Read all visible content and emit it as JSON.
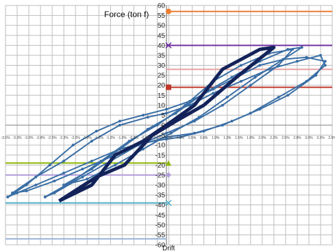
{
  "chart_data": {
    "type": "line",
    "title": "Force (ton f)",
    "xlabel": "Drift",
    "ylabel": "",
    "ylim": [
      -60,
      60
    ],
    "xlim": [
      -3.5,
      3.5
    ],
    "yticks": [
      60,
      55,
      50,
      45,
      40,
      35,
      30,
      25,
      20,
      15,
      10,
      5,
      0,
      -5,
      -10,
      -15,
      -20,
      -25,
      -30,
      -35,
      -40,
      -45,
      -50,
      -55,
      -60
    ],
    "xticks": [
      "-3.5%",
      "-3.3%",
      "-3.0%",
      "-2.8%",
      "-2.5%",
      "-2.3%",
      "-2.0%",
      "-1.8%",
      "-1.5%",
      "-1.3%",
      "-1.0%",
      "-0.8%",
      "-0.5%",
      "-0.3%",
      "0.0%",
      "0.3%",
      "0.5%",
      "0.8%",
      "1.0%",
      "1.3%",
      "1.5%",
      "1.8%",
      "2.0%",
      "2.3%",
      "2.5%",
      "2.8%",
      "3.0%",
      "3.3%",
      "3.5%"
    ],
    "grid": true,
    "hlines": [
      {
        "y": 57,
        "color": "#ED7D31",
        "marker": "circle",
        "side": "right"
      },
      {
        "y": 40,
        "color": "#7030A0",
        "marker": "x",
        "side": "right"
      },
      {
        "y": 28,
        "color": "#E6A0A0",
        "marker": "none",
        "side": "right"
      },
      {
        "y": 19,
        "color": "#C0392B",
        "marker": "square",
        "side": "right"
      },
      {
        "y": -19,
        "color": "#8DB600",
        "marker": "triangle",
        "side": "left"
      },
      {
        "y": -25,
        "color": "#B39DDB",
        "marker": "diamond",
        "side": "left"
      },
      {
        "y": -39,
        "color": "#4BACC6",
        "marker": "x",
        "side": "left"
      },
      {
        "y": -57,
        "color": "#95B3D7",
        "marker": "none",
        "side": "left"
      }
    ],
    "series": [
      {
        "color": "#3A6EA5",
        "width": 2,
        "markers": true,
        "x": [
          -3.4,
          -3.0,
          -2.5,
          -2.0,
          -1.5,
          -1.0,
          -0.5,
          0.0,
          0.5,
          1.0,
          1.5,
          2.0,
          2.5,
          3.0,
          3.4,
          3.2,
          2.6,
          2.0,
          1.4,
          0.8,
          0.3,
          0.0,
          -0.5,
          -1.0,
          -1.6,
          -2.2,
          -2.8,
          -3.2,
          -3.4
        ],
        "y": [
          -36,
          -30,
          -20,
          -10,
          -3,
          2,
          5,
          8,
          12,
          18,
          24,
          30,
          33,
          34,
          32,
          25,
          15,
          8,
          2,
          -3,
          -6,
          -7,
          -9,
          -12,
          -18,
          -24,
          -30,
          -34,
          -36
        ]
      },
      {
        "color": "#3A6EA5",
        "width": 2,
        "markers": true,
        "x": [
          -3.3,
          -2.8,
          -2.2,
          -1.6,
          -1.0,
          -0.4,
          0.0,
          0.5,
          1.0,
          1.6,
          2.2,
          2.8,
          3.3,
          3.4,
          3.0,
          2.4,
          1.8,
          1.2,
          0.6,
          0.0,
          -0.6,
          -1.2,
          -1.8,
          -2.4,
          -3.0,
          -3.3
        ],
        "y": [
          -34,
          -26,
          -18,
          -8,
          0,
          4,
          6,
          10,
          16,
          22,
          28,
          32,
          35,
          30,
          22,
          14,
          6,
          0,
          -4,
          -6,
          -10,
          -16,
          -22,
          -28,
          -33,
          -34
        ]
      },
      {
        "color": "#3A6EA5",
        "width": 2,
        "markers": true,
        "x": [
          -2.6,
          -2.0,
          -1.4,
          -0.8,
          -0.2,
          0.4,
          1.0,
          1.6,
          2.2,
          2.7,
          2.4,
          1.8,
          1.2,
          0.6,
          0.0,
          -0.6,
          -1.2,
          -1.8,
          -2.4,
          -2.6
        ],
        "y": [
          -36,
          -28,
          -18,
          -8,
          0,
          10,
          22,
          30,
          36,
          38,
          30,
          20,
          10,
          2,
          -4,
          -10,
          -18,
          -26,
          -34,
          -36
        ]
      },
      {
        "color": "#3A6EA5",
        "width": 2,
        "markers": true,
        "x": [
          -2.2,
          -1.6,
          -1.0,
          -0.4,
          0.2,
          0.8,
          1.4,
          2.0,
          2.6,
          2.9,
          2.5,
          1.9,
          1.3,
          0.7,
          0.1,
          -0.5,
          -1.1,
          -1.7,
          -2.2
        ],
        "y": [
          -30,
          -22,
          -12,
          -2,
          6,
          16,
          24,
          32,
          38,
          39,
          33,
          24,
          14,
          4,
          -4,
          -12,
          -20,
          -27,
          -30
        ]
      },
      {
        "color": "#13235A",
        "width": 5,
        "markers": false,
        "x": [
          -2.3,
          -1.6,
          -1.1,
          -0.5,
          0.0,
          0.6,
          1.2,
          2.0,
          2.3,
          1.5,
          0.8,
          0.2,
          -0.3,
          -0.9,
          -1.5,
          -2.3
        ],
        "y": [
          -38,
          -30,
          -15,
          -8,
          0,
          10,
          28,
          38,
          39,
          24,
          10,
          2,
          -5,
          -20,
          -26,
          -38
        ]
      }
    ]
  }
}
